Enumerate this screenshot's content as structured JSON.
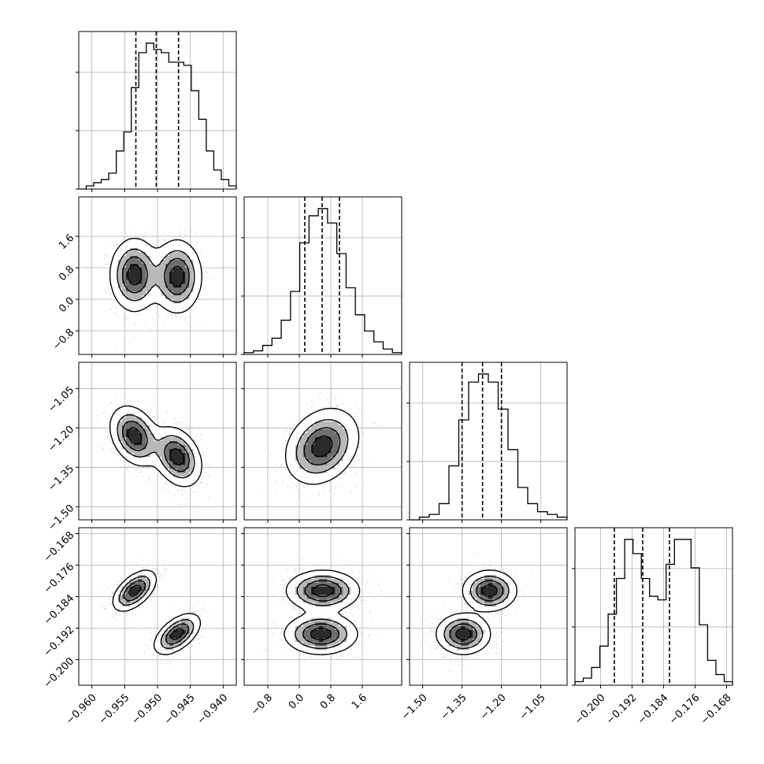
{
  "chart_data": {
    "type": "corner",
    "parameters": 4,
    "colors": {
      "line": "#000000",
      "grid": "#b0b0b0",
      "points": "#7f7f7f",
      "axes": "#000000"
    },
    "ranges": [
      [
        -0.962,
        -0.938
      ],
      [
        -1.4,
        2.6
      ],
      [
        -1.55,
        -0.95
      ],
      [
        -0.2065,
        -0.1665
      ]
    ],
    "ticks": [
      [
        "−0.960",
        "−0.955",
        "−0.950",
        "−0.945",
        "−0.940"
      ],
      [
        "−0.8",
        "0.0",
        "0.8",
        "1.6"
      ],
      [
        "−1.50",
        "−1.35",
        "−1.20",
        "−1.05"
      ],
      [
        "−0.200",
        "−0.192",
        "−0.184",
        "−0.176",
        "−0.168"
      ]
    ],
    "tick_values": [
      [
        -0.96,
        -0.955,
        -0.95,
        -0.945,
        -0.94
      ],
      [
        -0.8,
        0.0,
        0.8,
        1.6
      ],
      [
        -1.5,
        -1.35,
        -1.2,
        -1.05
      ],
      [
        -0.2,
        -0.192,
        -0.184,
        -0.176,
        -0.168
      ]
    ],
    "grid": true,
    "quantiles": [
      [
        -0.9533,
        -0.9502,
        -0.9468
      ],
      [
        0.14,
        0.58,
        1.02
      ],
      [
        -1.35,
        -1.272,
        -1.2
      ],
      [
        -0.1965,
        -0.1893,
        -0.1825
      ]
    ],
    "histograms": [
      [
        0,
        1,
        2,
        3,
        5,
        12,
        18,
        32,
        43,
        46,
        44,
        43,
        40,
        40,
        39,
        31,
        22,
        12,
        6,
        3,
        1
      ],
      [
        1,
        2,
        5,
        9,
        19,
        35,
        62,
        77,
        81,
        73,
        56,
        37,
        22,
        13,
        7,
        3,
        1
      ],
      [
        0,
        1,
        2,
        6,
        20,
        37,
        51,
        54,
        51,
        41,
        26,
        12,
        6,
        3,
        2,
        1
      ],
      [
        1,
        2,
        5,
        11,
        20,
        30,
        41,
        37,
        30,
        25,
        24,
        34,
        41,
        41,
        33,
        17,
        7,
        3,
        1
      ]
    ],
    "blobs": [
      {
        "row": 1,
        "col": 0,
        "components": [
          {
            "mx": -0.9535,
            "my": 0.62,
            "sx": 0.0018,
            "sy": 0.45,
            "r": 0,
            "w": 1
          },
          {
            "mx": -0.947,
            "my": 0.58,
            "sx": 0.0018,
            "sy": 0.45,
            "r": 0,
            "w": 1
          }
        ]
      },
      {
        "row": 2,
        "col": 0,
        "components": [
          {
            "mx": -0.9535,
            "my": -1.23,
            "sx": 0.0018,
            "sy": 0.055,
            "r": -0.3,
            "w": 1
          },
          {
            "mx": -0.947,
            "my": -1.31,
            "sx": 0.0018,
            "sy": 0.055,
            "r": -0.3,
            "w": 1
          }
        ]
      },
      {
        "row": 2,
        "col": 1,
        "components": [
          {
            "mx": 0.58,
            "my": -1.27,
            "sx": 0.45,
            "sy": 0.07,
            "r": 0.25,
            "w": 1
          }
        ]
      },
      {
        "row": 3,
        "col": 0,
        "components": [
          {
            "mx": -0.9535,
            "my": -0.1825,
            "sx": 0.0016,
            "sy": 0.0025,
            "r": 0.55,
            "w": 1
          },
          {
            "mx": -0.947,
            "my": -0.1935,
            "sx": 0.0017,
            "sy": 0.0025,
            "r": 0.55,
            "w": 1
          }
        ]
      },
      {
        "row": 3,
        "col": 1,
        "components": [
          {
            "mx": 0.6,
            "my": -0.1825,
            "sx": 0.45,
            "sy": 0.0025,
            "r": 0,
            "w": 1
          },
          {
            "mx": 0.55,
            "my": -0.1935,
            "sx": 0.45,
            "sy": 0.0025,
            "r": 0,
            "w": 1
          }
        ]
      },
      {
        "row": 3,
        "col": 2,
        "components": [
          {
            "mx": -1.245,
            "my": -0.1825,
            "sx": 0.05,
            "sy": 0.0025,
            "r": 0,
            "w": 1
          },
          {
            "mx": -1.345,
            "my": -0.1935,
            "sx": 0.05,
            "sy": 0.0025,
            "r": 0,
            "w": 1
          }
        ]
      }
    ]
  }
}
